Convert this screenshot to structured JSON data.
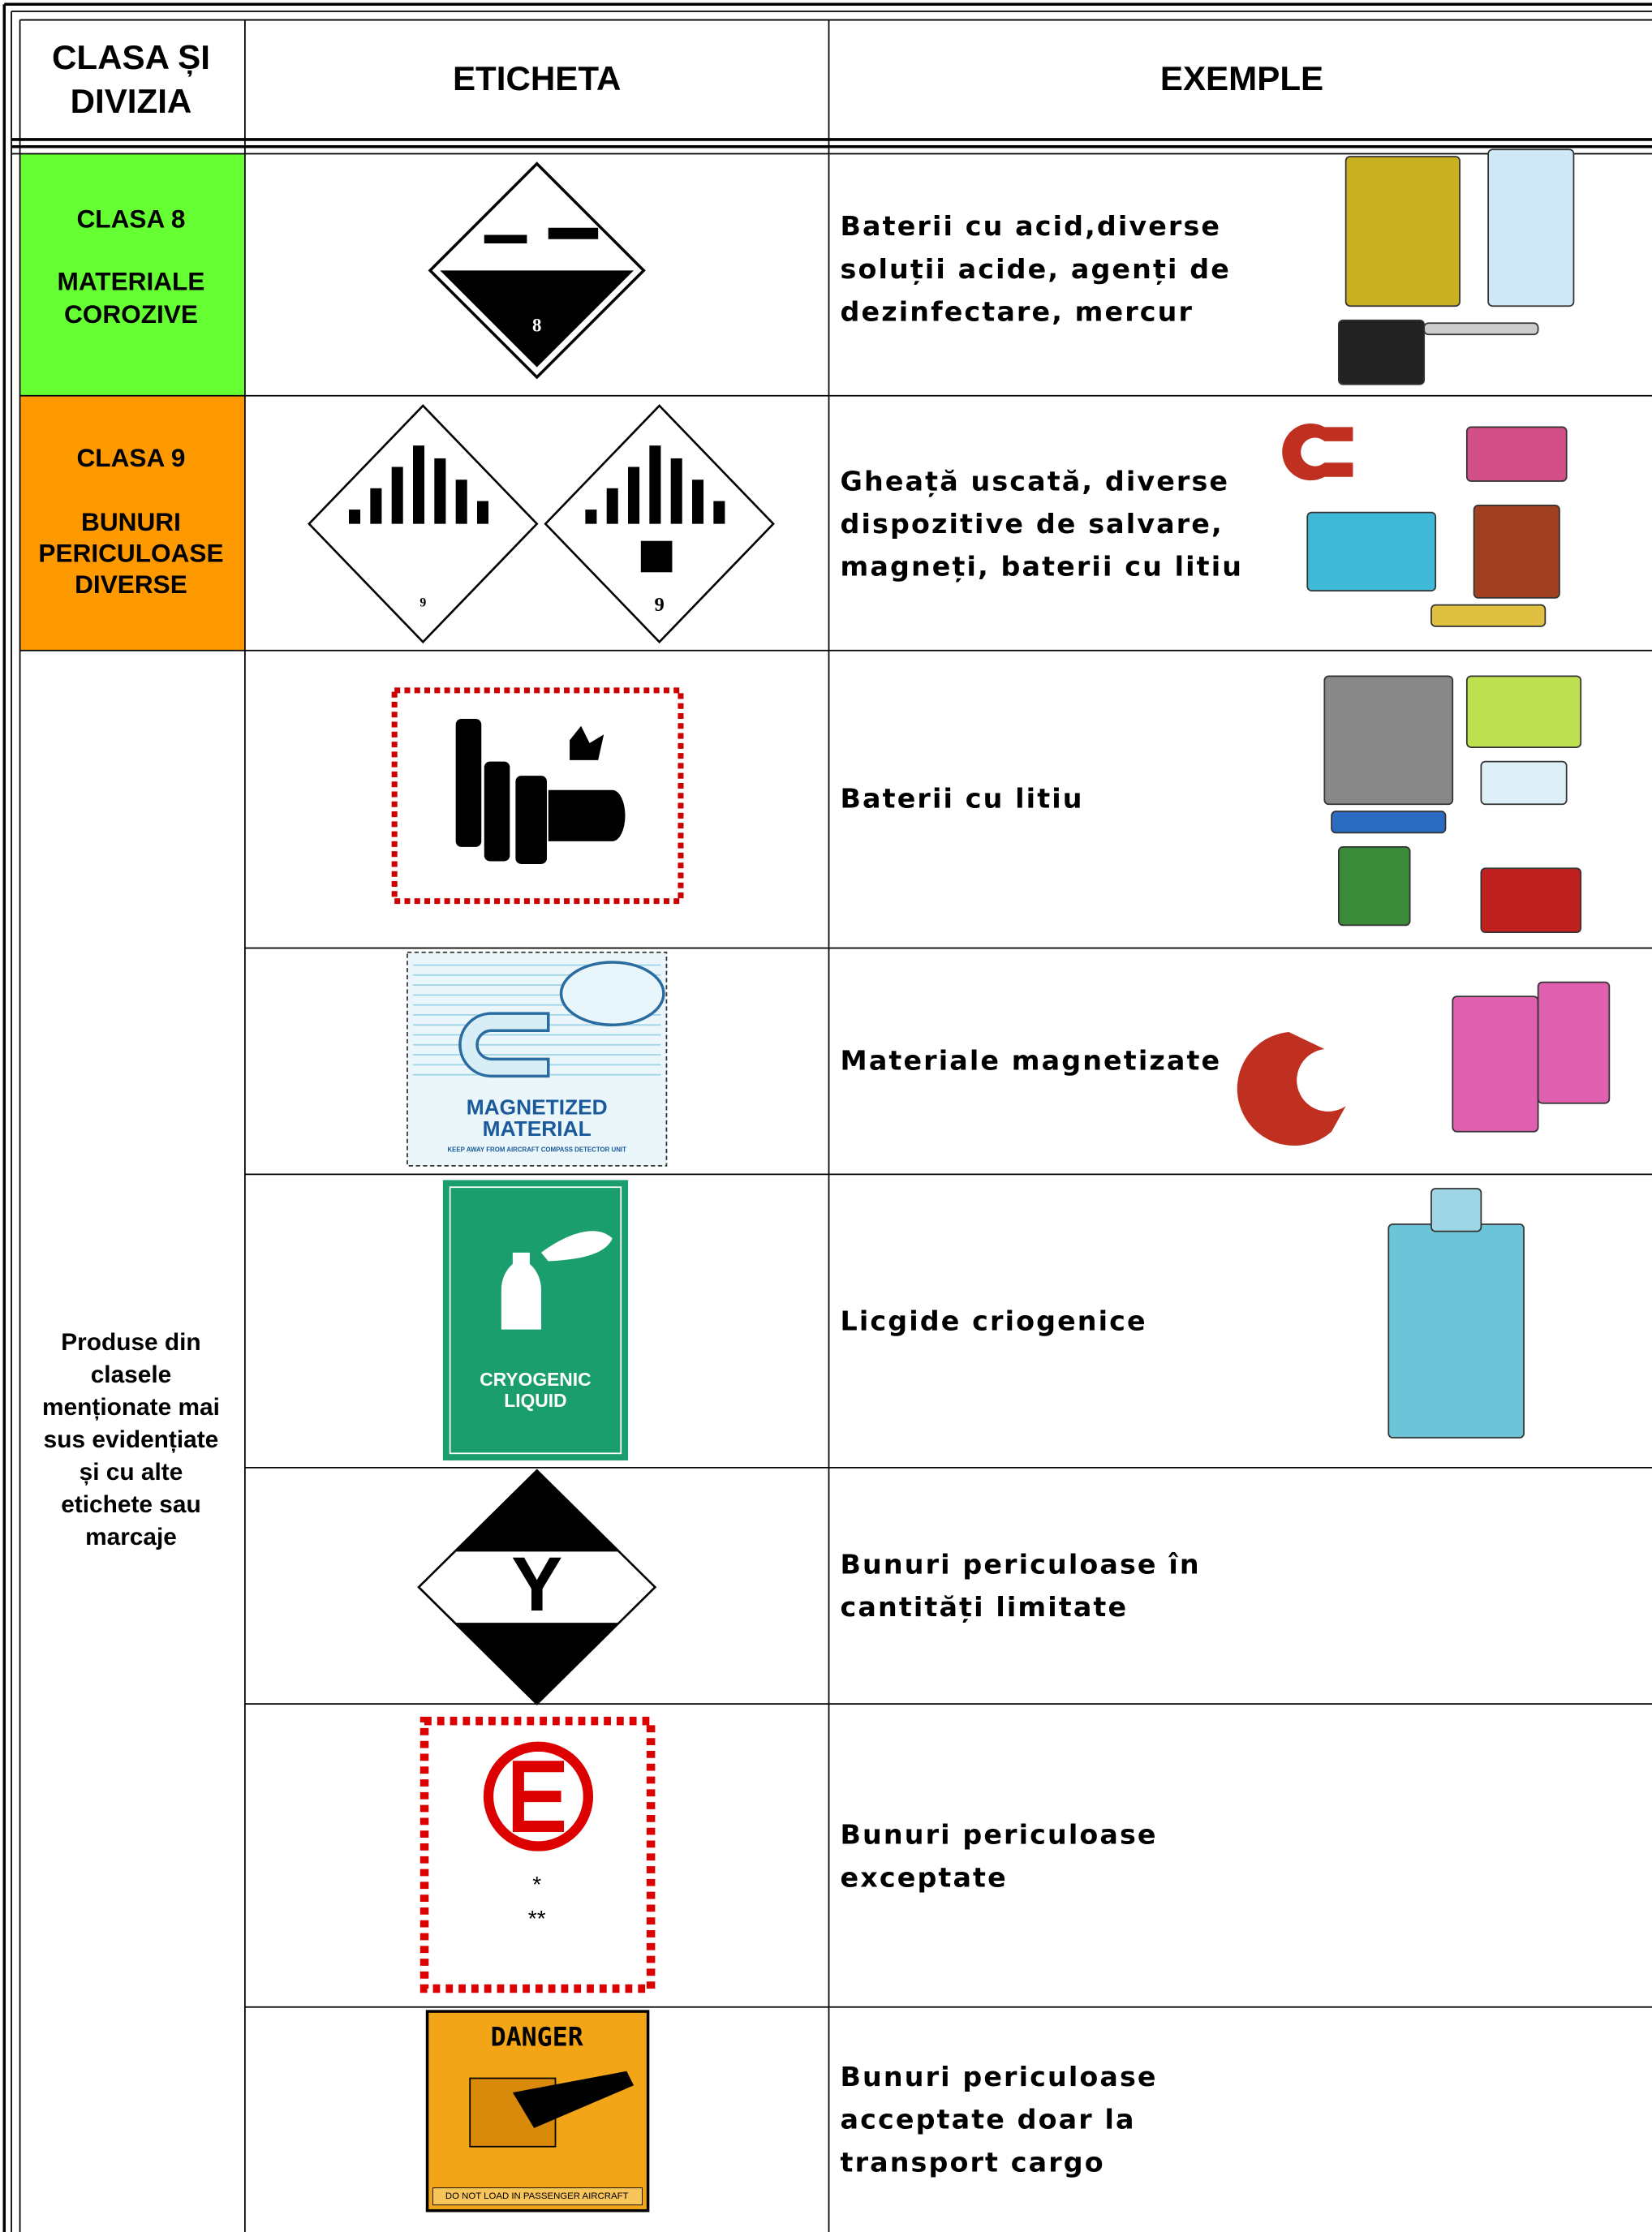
{
  "header": {
    "class_col": [
      "CLASA ȘI",
      "DIVIZIA"
    ],
    "label_col": "ETICHETA",
    "examples_col": "EXEMPLE"
  },
  "rows": [
    {
      "class": [
        "CLASA 8",
        "",
        "MATERIALE",
        "COROZIVE"
      ],
      "label_texts": [
        "8"
      ],
      "examples": [
        "Baterii cu acid,diverse",
        "soluții acide, agenți de",
        "dezinfectare, mercur"
      ]
    },
    {
      "class": [
        "CLASA 9",
        "",
        "BUNURI",
        "PERICULOASE",
        "DIVERSE"
      ],
      "label_texts": [
        "9",
        "9"
      ],
      "examples": [
        "Gheață uscată, diverse",
        "dispozitive de salvare,",
        "magneți, baterii cu litiu"
      ]
    },
    {
      "examples": [
        "Baterii cu litiu"
      ]
    },
    {
      "label_texts": [
        "MAGNETIZED",
        "MATERIAL",
        "KEEP AWAY FROM AIRCRAFT COMPASS DETECTOR UNIT"
      ],
      "examples": [
        "Materiale magnetizate"
      ]
    },
    {
      "label_texts": [
        "CRYOGENIC",
        "LIQUID"
      ],
      "examples": [
        "Licgide criogenice"
      ]
    },
    {
      "label_texts": [
        "Y"
      ],
      "examples": [
        "Bunuri periculoase în",
        "cantități limitate"
      ]
    },
    {
      "label_texts": [
        "*",
        "**"
      ],
      "examples": [
        "Bunuri periculoase",
        "exceptate"
      ]
    },
    {
      "label_texts": [
        "DANGER",
        "DO NOT LOAD IN PASSENGER AIRCRAFT"
      ],
      "examples": [
        "Bunuri periculoase",
        "acceptate doar la",
        "transport cargo"
      ]
    }
  ],
  "group_class": [
    "Produse din",
    "clasele",
    "menționate mai",
    "sus evidențiate",
    "și cu alte",
    "etichete sau",
    "marcaje"
  ]
}
